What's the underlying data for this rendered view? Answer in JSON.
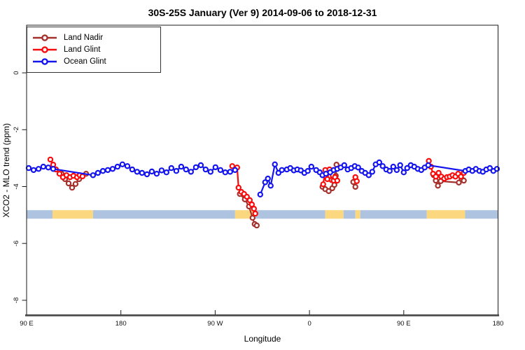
{
  "title": "30S-25S January (Ver 9)   2014-09-06 to 2018-12-31",
  "legend": {
    "items": [
      {
        "label": "Land Nadir",
        "color": "#A5302B"
      },
      {
        "label": "Land Glint",
        "color": "#F90B0B"
      },
      {
        "label": "Ocean Glint",
        "color": "#1414EE"
      }
    ]
  },
  "chart_data": {
    "type": "line",
    "title": "30S-25S January (Ver 9)   2014-09-06 to 2018-12-31",
    "xlabel": "Longitude",
    "ylabel": "XCO2 - MLO trend (ppm)",
    "x_axis_note": "x = degrees eastward along wrapped longitude axis starting at 90E (total span 450 deg)",
    "xlim": [
      0,
      450
    ],
    "ylim": [
      -8.53,
      1.675
    ],
    "x_ticks": [
      {
        "pos": 0,
        "label": "90 E"
      },
      {
        "pos": 90,
        "label": "180"
      },
      {
        "pos": 180,
        "label": "90 W"
      },
      {
        "pos": 270,
        "label": "0"
      },
      {
        "pos": 360,
        "label": "90 E"
      },
      {
        "pos": 450,
        "label": "180"
      }
    ],
    "y_ticks": [
      0,
      -2,
      -4,
      -6,
      -8
    ],
    "grid": false,
    "legend_position": "top-left",
    "axis_line_color": "#4D4D4D",
    "series": [
      {
        "name": "Land Nadir",
        "color": "#A5302B",
        "segments": [
          [
            [
              33.4,
              -3.55
            ],
            [
              36.7,
              -3.74
            ],
            [
              40.1,
              -3.89
            ],
            [
              43.4,
              -4.04
            ],
            [
              46.7,
              -3.91
            ],
            [
              50.1,
              -3.74
            ],
            [
              53.4,
              -3.62
            ],
            [
              56.8,
              -3.55
            ]
          ],
          [
            [
              203.6,
              -4.26
            ],
            [
              208.3,
              -4.45
            ],
            [
              212.3,
              -4.7
            ],
            [
              215.7,
              -5.1
            ],
            [
              217.7,
              -5.32
            ],
            [
              219.7,
              -5.37
            ]
          ],
          [
            [
              282.4,
              -4.01
            ],
            [
              285.1,
              -4.09
            ],
            [
              288.4,
              -4.16
            ],
            [
              291.8,
              -4.06
            ],
            [
              293.8,
              -3.94
            ],
            [
              295.1,
              -3.62
            ],
            [
              295.8,
              -3.23
            ]
          ],
          [
            [
              311.8,
              -3.84
            ],
            [
              313.8,
              -4.01
            ]
          ],
          [
            [
              388.6,
              -3.6
            ],
            [
              390.6,
              -3.79
            ],
            [
              392.6,
              -3.97
            ],
            [
              395.3,
              -3.81
            ],
            [
              412.6,
              -3.86
            ],
            [
              415.3,
              -3.74
            ],
            [
              417.3,
              -3.79
            ]
          ]
        ]
      },
      {
        "name": "Land Glint",
        "color": "#F90B0B",
        "segments": [
          [
            [
              22.7,
              -3.05
            ],
            [
              25.4,
              -3.23
            ],
            [
              28.0,
              -3.4
            ],
            [
              31.4,
              -3.55
            ],
            [
              34.7,
              -3.67
            ],
            [
              38.1,
              -3.6
            ],
            [
              41.4,
              -3.67
            ],
            [
              44.7,
              -3.62
            ],
            [
              48.1,
              -3.67
            ],
            [
              50.7,
              -3.6
            ],
            [
              53.4,
              -3.64
            ]
          ],
          [
            [
              196.3,
              -3.28
            ],
            [
              201.0,
              -3.33
            ],
            [
              202.3,
              -4.04
            ],
            [
              205.0,
              -4.19
            ],
            [
              207.6,
              -4.26
            ],
            [
              210.3,
              -4.36
            ],
            [
              213.0,
              -4.48
            ],
            [
              215.0,
              -4.63
            ],
            [
              217.0,
              -4.78
            ],
            [
              218.3,
              -4.95
            ]
          ],
          [
            [
              283.1,
              -3.92
            ],
            [
              285.1,
              -3.42
            ],
            [
              287.1,
              -3.74
            ],
            [
              289.1,
              -3.4
            ],
            [
              291.1,
              -3.77
            ],
            [
              293.1,
              -3.79
            ],
            [
              294.4,
              -3.67
            ],
            [
              296.5,
              -3.79
            ]
          ],
          [
            [
              313.8,
              -3.67
            ],
            [
              315.2,
              -3.81
            ]
          ],
          [
            [
              383.9,
              -3.1
            ],
            [
              385.9,
              -3.3
            ],
            [
              387.9,
              -3.55
            ],
            [
              390.6,
              -3.65
            ],
            [
              393.3,
              -3.52
            ],
            [
              395.9,
              -3.65
            ],
            [
              398.6,
              -3.72
            ],
            [
              401.3,
              -3.67
            ],
            [
              403.9,
              -3.65
            ],
            [
              406.6,
              -3.6
            ],
            [
              409.3,
              -3.65
            ],
            [
              411.9,
              -3.55
            ],
            [
              414.6,
              -3.65
            ],
            [
              417.3,
              -3.52
            ]
          ]
        ]
      },
      {
        "name": "Ocean Glint",
        "color": "#1414EE",
        "segments": [
          [
            [
              2.0,
              -3.35
            ],
            [
              6.7,
              -3.42
            ],
            [
              11.4,
              -3.38
            ],
            [
              16.0,
              -3.3
            ],
            [
              20.7,
              -3.33
            ],
            [
              25.4,
              -3.38
            ],
            [
              63.4,
              -3.6
            ],
            [
              68.1,
              -3.52
            ],
            [
              72.8,
              -3.45
            ],
            [
              77.5,
              -3.42
            ],
            [
              82.1,
              -3.38
            ],
            [
              86.8,
              -3.3
            ],
            [
              91.5,
              -3.22
            ],
            [
              96.2,
              -3.28
            ],
            [
              100.8,
              -3.4
            ],
            [
              105.5,
              -3.48
            ],
            [
              110.2,
              -3.52
            ],
            [
              114.9,
              -3.57
            ],
            [
              119.5,
              -3.47
            ],
            [
              124.2,
              -3.55
            ],
            [
              128.9,
              -3.43
            ],
            [
              133.5,
              -3.5
            ],
            [
              138.2,
              -3.35
            ],
            [
              142.9,
              -3.45
            ],
            [
              147.6,
              -3.3
            ],
            [
              152.2,
              -3.4
            ],
            [
              156.9,
              -3.48
            ],
            [
              161.6,
              -3.32
            ],
            [
              166.3,
              -3.25
            ],
            [
              170.9,
              -3.4
            ],
            [
              175.6,
              -3.48
            ],
            [
              180.3,
              -3.32
            ],
            [
              185.0,
              -3.42
            ],
            [
              189.6,
              -3.5
            ],
            [
              194.3,
              -3.48
            ],
            [
              199.0,
              -3.42
            ]
          ],
          [
            [
              223.0,
              -4.28
            ],
            [
              227.7,
              -3.85
            ],
            [
              230.3,
              -3.72
            ],
            [
              233.0,
              -3.97
            ],
            [
              237.0,
              -3.22
            ],
            [
              240.4,
              -3.52
            ],
            [
              243.7,
              -3.42
            ],
            [
              248.4,
              -3.4
            ],
            [
              251.7,
              -3.35
            ],
            [
              255.1,
              -3.43
            ],
            [
              258.4,
              -3.4
            ],
            [
              261.7,
              -3.43
            ],
            [
              265.1,
              -3.52
            ],
            [
              268.4,
              -3.45
            ],
            [
              271.8,
              -3.3
            ],
            [
              276.4,
              -3.42
            ],
            [
              279.8,
              -3.5
            ],
            [
              282.4,
              -3.6
            ],
            [
              285.8,
              -3.55
            ],
            [
              289.8,
              -3.5
            ],
            [
              293.1,
              -3.42
            ],
            [
              296.5,
              -3.38
            ],
            [
              299.8,
              -3.33
            ],
            [
              303.2,
              -3.25
            ],
            [
              306.5,
              -3.4
            ],
            [
              309.8,
              -3.35
            ],
            [
              313.2,
              -3.28
            ],
            [
              316.5,
              -3.33
            ],
            [
              319.9,
              -3.45
            ],
            [
              323.2,
              -3.52
            ],
            [
              326.6,
              -3.6
            ],
            [
              329.9,
              -3.48
            ],
            [
              333.2,
              -3.22
            ],
            [
              336.6,
              -3.15
            ],
            [
              339.9,
              -3.28
            ],
            [
              343.3,
              -3.4
            ],
            [
              346.6,
              -3.45
            ],
            [
              350.0,
              -3.3
            ],
            [
              353.3,
              -3.42
            ],
            [
              356.6,
              -3.25
            ],
            [
              360.0,
              -3.5
            ],
            [
              363.3,
              -3.35
            ],
            [
              366.7,
              -3.25
            ],
            [
              370.0,
              -3.3
            ],
            [
              373.4,
              -3.38
            ],
            [
              376.7,
              -3.42
            ],
            [
              380.0,
              -3.33
            ],
            [
              383.4,
              -3.25
            ],
            [
              418.8,
              -3.45
            ],
            [
              422.1,
              -3.4
            ],
            [
              425.5,
              -3.45
            ],
            [
              428.8,
              -3.38
            ],
            [
              432.2,
              -3.45
            ],
            [
              435.5,
              -3.48
            ],
            [
              438.8,
              -3.4
            ],
            [
              442.2,
              -3.35
            ],
            [
              445.5,
              -3.45
            ],
            [
              448.9,
              -3.38
            ]
          ]
        ]
      }
    ],
    "surface_band": {
      "description": "land/ocean indicator strip",
      "y_top": -4.83,
      "y_bottom": -5.13,
      "ocean_color": "#AEC3DF",
      "land_color": "#FBD87F",
      "segments": [
        {
          "type": "ocean",
          "from": 0,
          "to": 24.7
        },
        {
          "type": "land",
          "from": 24.7,
          "to": 63.4
        },
        {
          "type": "ocean",
          "from": 63.4,
          "to": 199.0
        },
        {
          "type": "land",
          "from": 199.0,
          "to": 216.3
        },
        {
          "type": "ocean",
          "from": 216.3,
          "to": 285.1
        },
        {
          "type": "land",
          "from": 285.1,
          "to": 302.5
        },
        {
          "type": "ocean",
          "from": 302.5,
          "to": 313.8
        },
        {
          "type": "land",
          "from": 313.8,
          "to": 318.5
        },
        {
          "type": "ocean",
          "from": 318.5,
          "to": 381.9
        },
        {
          "type": "land",
          "from": 381.9,
          "to": 418.6
        },
        {
          "type": "ocean",
          "from": 418.6,
          "to": 450
        }
      ]
    }
  }
}
